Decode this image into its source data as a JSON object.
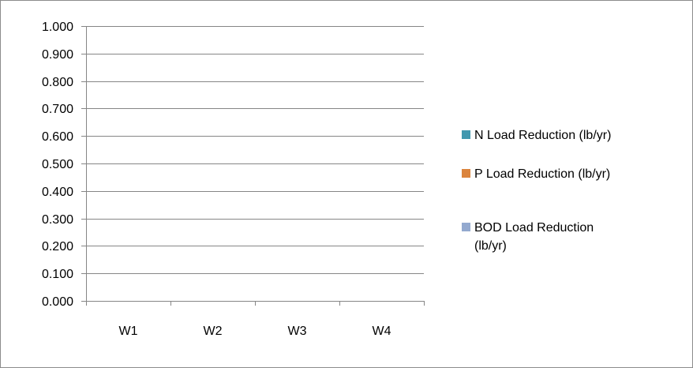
{
  "chart_data": {
    "type": "bar",
    "title": "",
    "xlabel": "",
    "ylabel": "",
    "categories": [
      "W1",
      "W2",
      "W3",
      "W4"
    ],
    "ylim": [
      0,
      1
    ],
    "yticks": [
      "0.000",
      "0.100",
      "0.200",
      "0.300",
      "0.400",
      "0.500",
      "0.600",
      "0.700",
      "0.800",
      "0.900",
      "1.000"
    ],
    "grid": true,
    "legend_position": "right",
    "series": [
      {
        "name": "N Load Reduction (lb/yr)",
        "color": "#4198AF",
        "values": [
          0,
          0,
          0,
          0
        ]
      },
      {
        "name": "P Load Reduction (lb/yr)",
        "color": "#DB843D",
        "values": [
          0,
          0,
          0,
          0
        ]
      },
      {
        "name": "BOD Load Reduction (lb/yr)",
        "color": "#93A9CF",
        "values": [
          0,
          0,
          0,
          0
        ]
      }
    ]
  }
}
